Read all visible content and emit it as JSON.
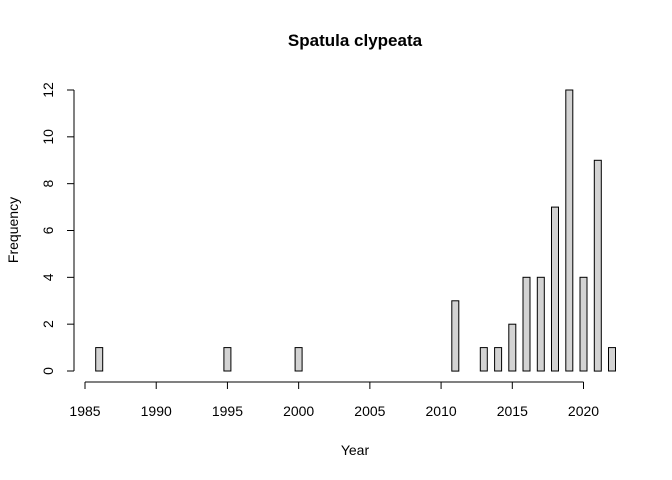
{
  "chart_data": {
    "type": "bar",
    "title": "Spatula clypeata",
    "xlabel": "Year",
    "ylabel": "Frequency",
    "xlim": [
      1985,
      2022
    ],
    "ylim": [
      0,
      12
    ],
    "x_ticks": [
      1985,
      1990,
      1995,
      2000,
      2005,
      2010,
      2015,
      2020
    ],
    "y_ticks": [
      0,
      2,
      4,
      6,
      8,
      10,
      12
    ],
    "grid": false,
    "bar_color": "#d3d3d3",
    "bar_stroke": "#000000",
    "x": [
      1986,
      1987,
      1988,
      1989,
      1990,
      1991,
      1992,
      1993,
      1994,
      1995,
      1996,
      1997,
      1998,
      1999,
      2000,
      2001,
      2002,
      2003,
      2004,
      2005,
      2006,
      2007,
      2008,
      2009,
      2010,
      2011,
      2012,
      2013,
      2014,
      2015,
      2016,
      2017,
      2018,
      2019,
      2020,
      2021,
      2022
    ],
    "values": [
      1,
      0,
      0,
      0,
      0,
      0,
      0,
      0,
      0,
      1,
      0,
      0,
      0,
      0,
      1,
      0,
      0,
      0,
      0,
      0,
      0,
      0,
      0,
      0,
      0,
      3,
      0,
      1,
      1,
      2,
      4,
      4,
      7,
      12,
      4,
      9,
      1
    ]
  }
}
